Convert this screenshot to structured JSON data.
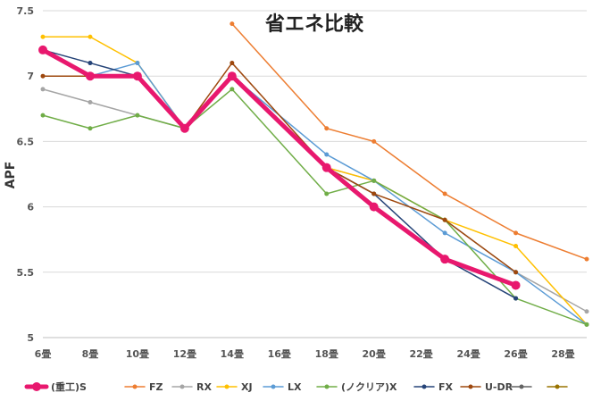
{
  "chart_data": {
    "type": "line",
    "title": "省エネ比較",
    "ylabel": "APF",
    "xlabel": "",
    "ylim": [
      5,
      7.5
    ],
    "yticks": [
      "5",
      "5.5",
      "6",
      "6.5",
      "7",
      "7.5"
    ],
    "ytick_values": [
      5,
      5.5,
      6,
      6.5,
      7,
      7.5
    ],
    "x_tick_labels": [
      "6畳",
      "8畳",
      "10畳",
      "12畳",
      "14畳",
      "16畳",
      "18畳",
      "20畳",
      "22畳",
      "24畳",
      "26畳",
      "28畳"
    ],
    "x_tick_values": [
      6,
      8,
      10,
      12,
      14,
      16,
      18,
      20,
      22,
      24,
      26,
      28
    ],
    "xlim": [
      6,
      29
    ],
    "grid": "horizontal",
    "legend_position": "bottom",
    "series": [
      {
        "name": "(重工)S",
        "color": "#e8186e",
        "emphasis": true,
        "points": [
          [
            6,
            7.2
          ],
          [
            8,
            7.0
          ],
          [
            10,
            7.0
          ],
          [
            12,
            6.6
          ],
          [
            14,
            7.0
          ],
          [
            18,
            6.3
          ],
          [
            20,
            6.0
          ],
          [
            23,
            5.6
          ],
          [
            26,
            5.4
          ]
        ]
      },
      {
        "name": "FZ",
        "color": "#ed7d31",
        "points": [
          [
            14,
            7.4
          ],
          [
            18,
            6.6
          ],
          [
            20,
            6.5
          ],
          [
            23,
            6.1
          ],
          [
            26,
            5.8
          ],
          [
            29,
            5.6
          ]
        ]
      },
      {
        "name": "RX",
        "color": "#a5a5a5",
        "points": [
          [
            6,
            6.9
          ],
          [
            8,
            6.8
          ],
          [
            10,
            6.7
          ],
          [
            12,
            6.6
          ],
          [
            14,
            7.0
          ],
          [
            18,
            6.3
          ],
          [
            20,
            6.2
          ],
          [
            23,
            5.9
          ],
          [
            26,
            5.5
          ],
          [
            29,
            5.2
          ]
        ]
      },
      {
        "name": "XJ",
        "color": "#ffc000",
        "points": [
          [
            6,
            7.3
          ],
          [
            8,
            7.3
          ],
          [
            10,
            7.1
          ],
          [
            12,
            6.6
          ],
          [
            14,
            7.0
          ],
          [
            18,
            6.3
          ],
          [
            20,
            6.2
          ],
          [
            23,
            5.9
          ],
          [
            26,
            5.7
          ],
          [
            29,
            5.1
          ]
        ]
      },
      {
        "name": "LX",
        "color": "#5b9bd5",
        "points": [
          [
            6,
            7.2
          ],
          [
            8,
            7.0
          ],
          [
            10,
            7.1
          ],
          [
            12,
            6.6
          ],
          [
            14,
            7.0
          ],
          [
            18,
            6.4
          ],
          [
            20,
            6.2
          ],
          [
            23,
            5.8
          ],
          [
            26,
            5.5
          ],
          [
            29,
            5.1
          ]
        ]
      },
      {
        "name": "(ノクリア)X",
        "color": "#70ad47",
        "points": [
          [
            6,
            6.7
          ],
          [
            8,
            6.6
          ],
          [
            10,
            6.7
          ],
          [
            12,
            6.6
          ],
          [
            14,
            6.9
          ],
          [
            18,
            6.1
          ],
          [
            20,
            6.2
          ],
          [
            23,
            5.9
          ],
          [
            26,
            5.3
          ],
          [
            29,
            5.1
          ]
        ]
      },
      {
        "name": "FX",
        "color": "#264478",
        "points": [
          [
            6,
            7.2
          ],
          [
            8,
            7.1
          ],
          [
            10,
            7.0
          ],
          [
            12,
            6.6
          ],
          [
            14,
            7.0
          ],
          [
            18,
            6.3
          ],
          [
            20,
            6.1
          ],
          [
            23,
            5.6
          ],
          [
            26,
            5.3
          ]
        ]
      },
      {
        "name": "U-DR",
        "color": "#9e480e",
        "points": [
          [
            6,
            7.0
          ],
          [
            8,
            7.0
          ],
          [
            10,
            7.0
          ],
          [
            12,
            6.6
          ],
          [
            14,
            7.1
          ],
          [
            18,
            6.3
          ],
          [
            20,
            6.1
          ],
          [
            23,
            5.9
          ],
          [
            26,
            5.5
          ]
        ]
      },
      {
        "name": "",
        "color": "#636363",
        "points": []
      },
      {
        "name": "",
        "color": "#997300",
        "points": []
      }
    ]
  }
}
